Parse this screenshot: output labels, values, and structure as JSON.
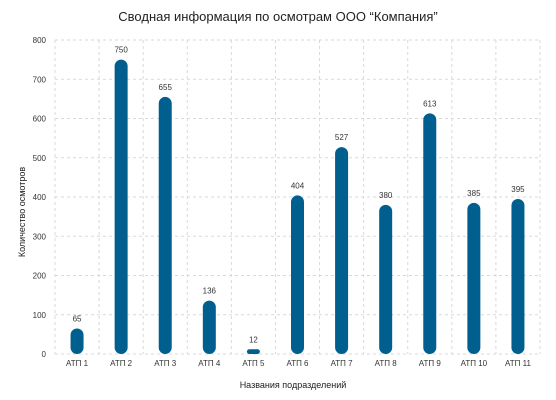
{
  "chart_data": {
    "type": "bar",
    "title": "Сводная информация по осмотрам ООО “Компания”",
    "xlabel": "Названия подразделений",
    "ylabel": "Количество осмотров",
    "categories": [
      "АТП 1",
      "АТП 2",
      "АТП 3",
      "АТП 4",
      "АТП 5",
      "АТП 6",
      "АТП 7",
      "АТП 8",
      "АТП 9",
      "АТП 10",
      "АТП 11"
    ],
    "values": [
      65,
      750,
      655,
      136,
      12,
      404,
      527,
      380,
      613,
      385,
      395
    ],
    "ylim": [
      0,
      800
    ],
    "yticks": [
      0,
      100,
      200,
      300,
      400,
      500,
      600,
      700,
      800
    ],
    "grid": true,
    "data_labels": true,
    "bar_color": "#005f8f",
    "grid_color": "#d9d9d9"
  }
}
